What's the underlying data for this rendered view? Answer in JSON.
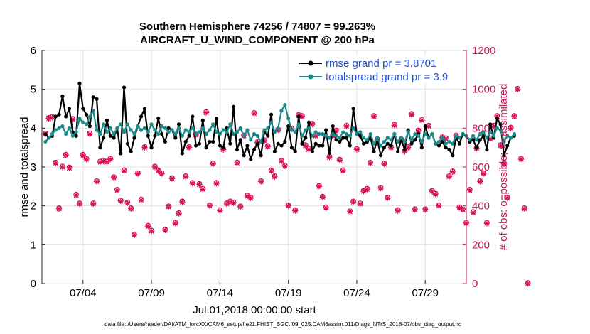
{
  "chart_data": {
    "type": "line",
    "title": "Southern Hemisphere 74256 / 74807 = 99.263%",
    "subtitle": "AIRCRAFT_U_WIND_COMPONENT @ 200 hPa",
    "xlabel": "Jul.01,2018 00:00:00 start",
    "ylabel_left": "rmse and totalspread",
    "ylabel_right": "# of obs: o=possible; ×=assimilated",
    "footer": "data file: /Users/raeder/DAI/ATM_forcXX/CAM6_setup/f.e21.FHIST_BGC.f09_025.CAM6assim.011/Diags_NTrS_2018-07/obs_diag_output.nc",
    "x_range": [
      1,
      32
    ],
    "ylim_left": [
      0,
      6
    ],
    "ylim_right": [
      0,
      1200
    ],
    "x_ticks": [
      {
        "value": 4,
        "label": "07/04"
      },
      {
        "value": 9,
        "label": "07/09"
      },
      {
        "value": 14,
        "label": "07/14"
      },
      {
        "value": 19,
        "label": "07/19"
      },
      {
        "value": 24,
        "label": "07/24"
      },
      {
        "value": 29,
        "label": "07/29"
      }
    ],
    "y_ticks_left": [
      "0",
      "1",
      "2",
      "3",
      "4",
      "5",
      "6"
    ],
    "y_ticks_right": [
      "0",
      "200",
      "400",
      "600",
      "800",
      "1000",
      "1200"
    ],
    "grid": true,
    "legend_position": "top-right",
    "colors": {
      "rmse": "#000000",
      "spread": "#1a8a8a",
      "obs": "#d6135a",
      "legend_text": "#1f4fd6",
      "right_axis": "#c2185b"
    },
    "series": [
      {
        "name": "rmse grand pr = 3.8701",
        "color": "#000000",
        "x_start": 1.25,
        "x_step": 0.25,
        "values": [
          3.85,
          3.75,
          3.8,
          4.3,
          4.35,
          4.82,
          4.3,
          4.5,
          3.9,
          3.8,
          5.15,
          4.5,
          4.35,
          4.05,
          4.8,
          4.75,
          3.5,
          3.75,
          4.2,
          3.8,
          3.75,
          4.0,
          3.35,
          5.05,
          3.6,
          3.4,
          3.75,
          4.05,
          4.3,
          4.5,
          3.8,
          3.5,
          3.8,
          4.25,
          3.85,
          3.65,
          4.0,
          3.95,
          3.75,
          4.1,
          3.35,
          3.65,
          3.8,
          4.3,
          3.55,
          3.6,
          4.2,
          3.5,
          3.65,
          3.65,
          4.25,
          3.55,
          3.5,
          4.0,
          3.6,
          4.55,
          3.45,
          3.7,
          3.3,
          3.55,
          3.2,
          3.45,
          3.6,
          3.3,
          3.9,
          3.8,
          4.35,
          3.4,
          3.6,
          3.55,
          3.65,
          4.05,
          3.5,
          3.4,
          4.3,
          3.6,
          3.75,
          4.15,
          3.4,
          3.6,
          3.55,
          3.55,
          3.95,
          3.35,
          4.05,
          3.7,
          3.65,
          3.75,
          3.75,
          3.55,
          4.5,
          3.85,
          3.8,
          3.6,
          3.65,
          3.75,
          3.4,
          3.7,
          3.3,
          3.5,
          3.6,
          3.55,
          3.85,
          3.4,
          3.7,
          3.45,
          3.95,
          3.6,
          3.7,
          3.85,
          3.5,
          4.05,
          3.75,
          3.85,
          3.6,
          3.55,
          3.65,
          3.5,
          3.45,
          3.3,
          3.75,
          3.6,
          3.85,
          3.8,
          3.65,
          3.7,
          3.5,
          3.7,
          3.8,
          3.45,
          4.1,
          3.75,
          4.25,
          4.1,
          3.3,
          3.55,
          3.75,
          3.8
        ]
      },
      {
        "name": "totalspread grand pr = 3.9",
        "color": "#1a8a8a",
        "x_start": 1.25,
        "x_step": 0.25,
        "values": [
          3.65,
          3.75,
          3.85,
          3.95,
          4.0,
          4.05,
          3.85,
          4.0,
          3.8,
          3.9,
          4.25,
          4.15,
          4.1,
          4.3,
          4.45,
          3.95,
          3.85,
          4.1,
          3.9,
          4.0,
          3.85,
          4.0,
          4.1,
          3.9,
          4.1,
          3.95,
          3.85,
          4.05,
          3.95,
          4.0,
          3.9,
          4.1,
          3.95,
          3.85,
          4.05,
          4.0,
          3.9,
          3.95,
          3.85,
          4.0,
          3.8,
          3.95,
          3.9,
          4.0,
          3.85,
          3.9,
          4.0,
          3.85,
          3.95,
          4.1,
          3.9,
          3.85,
          3.95,
          3.9,
          4.1,
          3.85,
          3.9,
          4.0,
          3.8,
          3.95,
          3.7,
          3.85,
          3.8,
          3.65,
          3.95,
          4.0,
          4.15,
          3.9,
          4.0,
          4.45,
          4.6,
          4.25,
          3.95,
          3.9,
          4.1,
          3.8,
          3.95,
          4.0,
          3.8,
          3.9,
          3.85,
          3.85,
          3.8,
          3.75,
          3.85,
          3.8,
          3.75,
          3.9,
          3.85,
          3.8,
          4.0,
          3.85,
          3.9,
          3.75,
          3.7,
          3.85,
          3.6,
          3.75,
          3.55,
          3.65,
          3.75,
          3.7,
          3.85,
          3.65,
          3.75,
          3.65,
          3.9,
          3.7,
          3.85,
          3.8,
          3.65,
          3.85,
          3.75,
          3.85,
          3.6,
          3.65,
          3.75,
          3.6,
          3.65,
          3.6,
          3.8,
          3.75,
          3.85,
          3.8,
          3.7,
          3.8,
          3.7,
          3.85,
          3.9,
          3.75,
          3.9,
          3.8,
          4.0,
          3.95,
          3.65,
          3.8,
          3.75,
          3.85
        ]
      },
      {
        "name": "# of obs (possible / assimilated)",
        "color": "#d6135a",
        "axis": "right",
        "x_start": 1.25,
        "x_step": 0.25,
        "values": [
          770,
          850,
          855,
          620,
          385,
          600,
          660,
          595,
          845,
          455,
          410,
          660,
          640,
          770,
          410,
          525,
          625,
          630,
          625,
          640,
          545,
          480,
          425,
          580,
          415,
          385,
          250,
          565,
          430,
          700,
          295,
          270,
          600,
          580,
          565,
          275,
          395,
          540,
          310,
          360,
          420,
          550,
          700,
          515,
          765,
          510,
          485,
          880,
          400,
          615,
          515,
          375,
          690,
          410,
          420,
          415,
          620,
          395,
          760,
          450,
          440,
          875,
          725,
          525,
          735,
          705,
          580,
          550,
          790,
          630,
          605,
          400,
          795,
          375,
          865,
          860,
          710,
          690,
          820,
          760,
          500,
          445,
          390,
          650,
          760,
          785,
          635,
          580,
          810,
          370,
          420,
          690,
          410,
          475,
          485,
          620,
          860,
          740,
          490,
          615,
          440,
          700,
          815,
          375,
          740,
          680,
          700,
          870,
          380,
          785,
          840,
          380,
          810,
          475,
          460,
          400,
          750,
          745,
          550,
          575,
          760,
          390,
          380,
          310,
          480,
          365,
          695,
          525,
          565,
          310,
          745,
          810,
          860,
          710,
          615,
          440,
          800,
          860,
          1000,
          640,
          385,
          0
        ]
      }
    ]
  }
}
